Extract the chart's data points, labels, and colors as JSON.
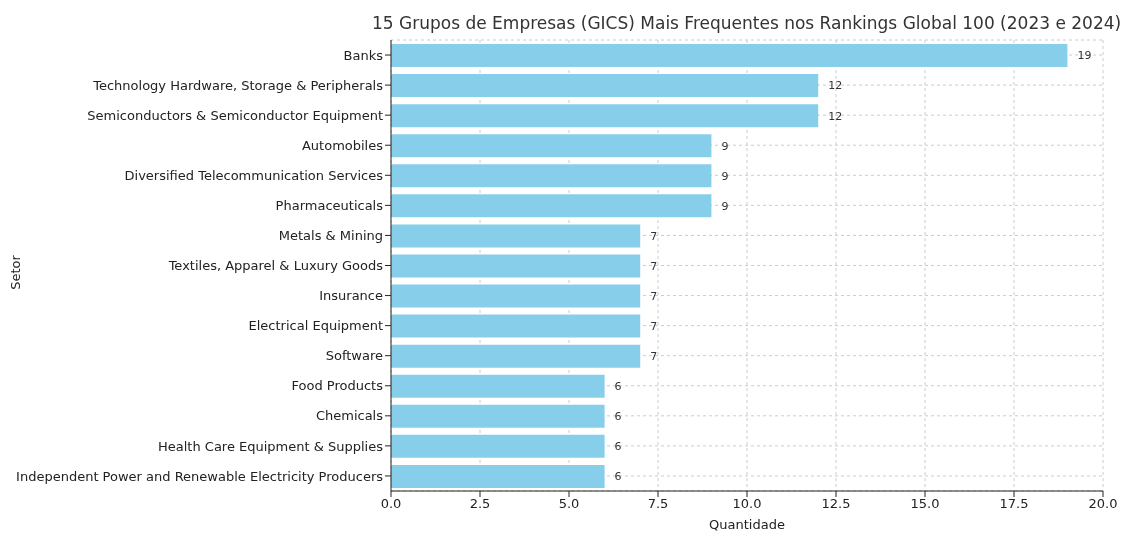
{
  "chart_data": {
    "type": "bar",
    "orientation": "horizontal",
    "title": "15 Grupos de Empresas (GICS) Mais Frequentes nos Rankings Global 100 (2023 e 2024)",
    "xlabel": "Quantidade",
    "ylabel": "Setor",
    "categories": [
      "Banks",
      "Technology Hardware, Storage & Peripherals",
      "Semiconductors & Semiconductor Equipment",
      "Automobiles",
      "Diversified Telecommunication Services",
      "Pharmaceuticals",
      "Metals & Mining",
      "Textiles, Apparel & Luxury Goods",
      "Insurance",
      "Electrical Equipment",
      "Software",
      "Food Products",
      "Chemicals",
      "Health Care Equipment & Supplies",
      "Independent Power and Renewable Electricity Producers"
    ],
    "values": [
      19,
      12,
      12,
      9,
      9,
      9,
      7,
      7,
      7,
      7,
      7,
      6,
      6,
      6,
      6
    ],
    "color": "#87ceeb",
    "xlim": [
      0,
      20
    ],
    "xticks": [
      {
        "value": 0,
        "label": "0.0"
      },
      2.5,
      {
        "value": 5,
        "label": "5.0"
      },
      7.5,
      {
        "value": 10,
        "label": "10.0"
      },
      12.5,
      {
        "value": 15,
        "label": "15.0"
      },
      17.5,
      {
        "value": 20,
        "label": "20.0"
      }
    ],
    "grid": true,
    "data_labels": true
  }
}
